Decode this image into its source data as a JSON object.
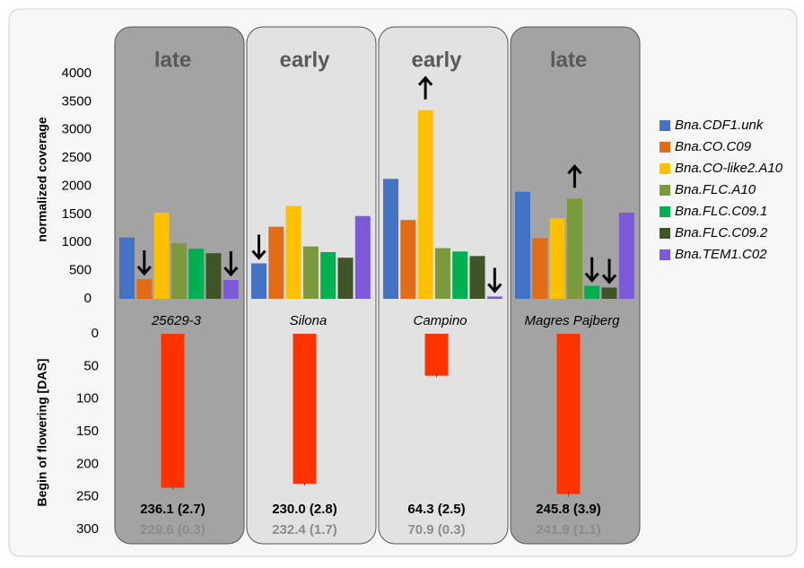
{
  "chart_data": [
    {
      "type": "bar",
      "group_labels": [
        "late",
        "early",
        "early",
        "late"
      ],
      "y_label": "normalized coverage",
      "categories": [
        "25629-3",
        "Silona",
        "Campino",
        "Magres Pajberg"
      ],
      "ylim": [
        0,
        4000
      ],
      "yticks": [
        0,
        500,
        1000,
        1500,
        2000,
        2500,
        3000,
        3500,
        4000
      ],
      "series": [
        {
          "name": "Bna.CDF1.unk",
          "color": "#4472c4",
          "values": [
            1090,
            630,
            2130,
            1900
          ]
        },
        {
          "name": "Bna.CO.C09",
          "color": "#e46c16",
          "values": [
            350,
            1280,
            1400,
            1080
          ]
        },
        {
          "name": "Bna.CO-like2.A10",
          "color": "#ffc000",
          "values": [
            1530,
            1650,
            3350,
            1430
          ]
        },
        {
          "name": "Bna.FLC.A10",
          "color": "#7a9a3c",
          "values": [
            990,
            930,
            900,
            1780
          ]
        },
        {
          "name": "Bna.FLC.C09.1",
          "color": "#00b050",
          "values": [
            890,
            830,
            840,
            230
          ]
        },
        {
          "name": "Bna.FLC.C09.2",
          "color": "#3f5528",
          "values": [
            810,
            730,
            760,
            200
          ]
        },
        {
          "name": "Bna.TEM1.C02",
          "color": "#7b59d8",
          "values": [
            335,
            1470,
            40,
            1530
          ]
        }
      ]
    },
    {
      "type": "bar",
      "y_label": "Begin of flowering [DAS]",
      "y_inverted": true,
      "ylim": [
        0,
        300
      ],
      "yticks": [
        0,
        50,
        100,
        150,
        200,
        250,
        300
      ],
      "series": [
        {
          "color": "#ff3300",
          "values": [
            236.1,
            230.0,
            64.3,
            245.8
          ],
          "errors": [
            2.7,
            2.8,
            2.5,
            3.9
          ],
          "value_labels": [
            "236.1 (2.7)",
            "230.0 (2.8)",
            "64.3 (2.5)",
            "245.8 (3.9)"
          ]
        },
        {
          "color": "#8c8c8c",
          "values": [
            229.6,
            232.4,
            70.9,
            241.9
          ],
          "errors": [
            0.3,
            1.7,
            0.3,
            1.1
          ],
          "value_labels": [
            "229.6 (0.3)",
            "232.4 (1.7)",
            "70.9 (0.3)",
            "241.9 (1.1)"
          ]
        }
      ]
    }
  ]
}
